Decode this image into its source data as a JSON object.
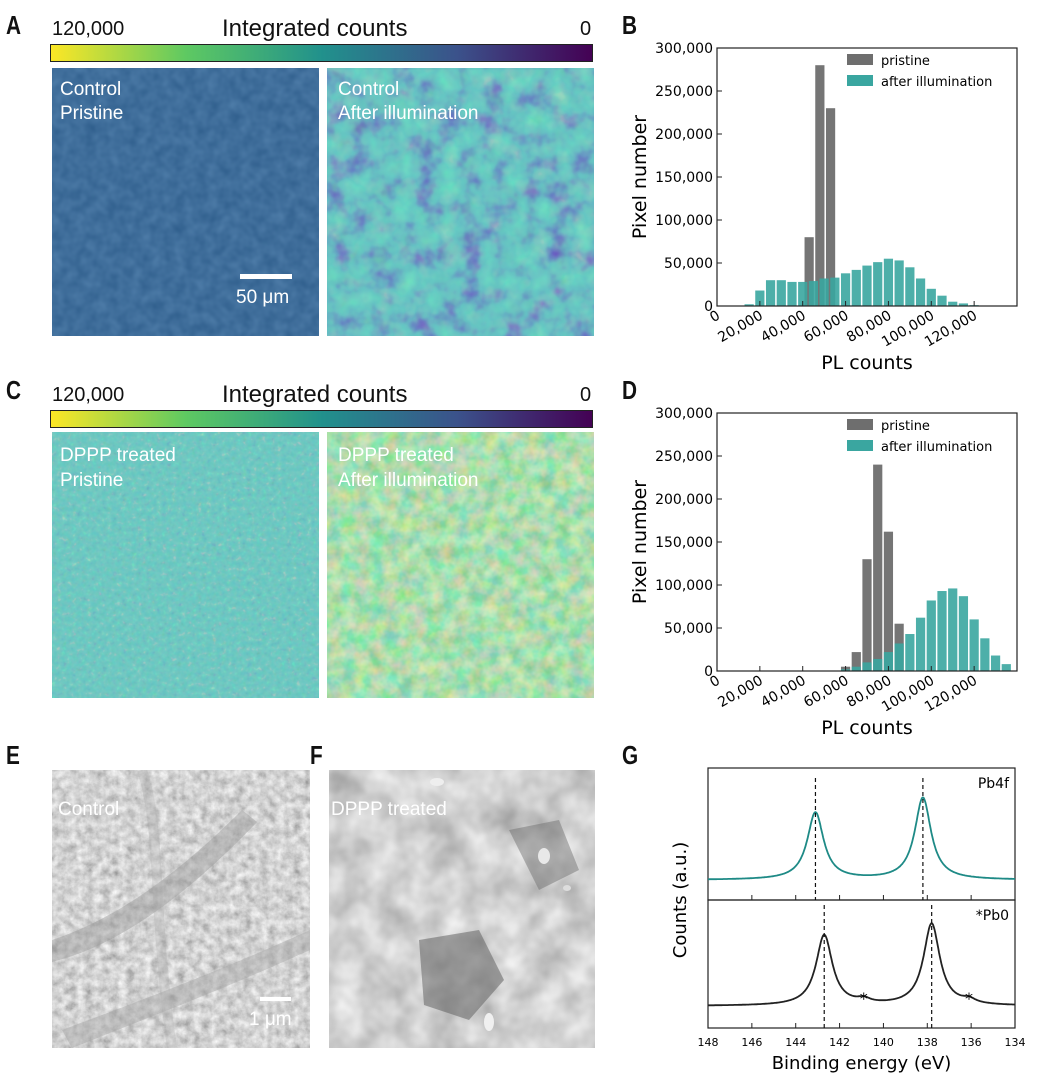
{
  "panels": {
    "A": {
      "letter": "A",
      "colorbar": {
        "title": "Integrated counts",
        "left_value": "120,000",
        "right_value": "0"
      },
      "images": [
        {
          "label_line1": "Control",
          "label_line2": "Pristine"
        },
        {
          "label_line1": "Control",
          "label_line2": "After illumination"
        }
      ],
      "scalebar": "50 μm"
    },
    "B": {
      "letter": "B"
    },
    "C": {
      "letter": "C",
      "colorbar": {
        "title": "Integrated counts",
        "left_value": "120,000",
        "right_value": "0"
      },
      "images": [
        {
          "label_line1": "DPPP treated",
          "label_line2": "Pristine"
        },
        {
          "label_line1": "DPPP treated",
          "label_line2": "After illumination"
        }
      ]
    },
    "D": {
      "letter": "D"
    },
    "E": {
      "letter": "E",
      "label": "Control",
      "scalebar": "1 μm"
    },
    "F": {
      "letter": "F",
      "label": "DPPP treated"
    },
    "G": {
      "letter": "G"
    }
  },
  "colors": {
    "pristine": "#6e6e6e",
    "after": "#3aa6a0",
    "pb4f_line": "#1e8a86",
    "pb0_line": "#222222"
  },
  "chart_data": [
    {
      "id": "B",
      "type": "bar",
      "xlabel": "PL counts",
      "ylabel": "Pixel number",
      "xlim": [
        0,
        140000
      ],
      "ylim": [
        0,
        300000
      ],
      "xticks": [
        "0",
        "20,000",
        "40,000",
        "60,000",
        "80,000",
        "100,000",
        "120,000"
      ],
      "yticks": [
        "0",
        "50,000",
        "100,000",
        "150,000",
        "200,000",
        "250,000",
        "300,000"
      ],
      "legend": "top-right",
      "series": [
        {
          "name": "pristine",
          "x": [
            43000,
            48000,
            53000
          ],
          "values": [
            80000,
            280000,
            230000
          ]
        },
        {
          "name": "after illumination",
          "x": [
            15000,
            20000,
            25000,
            30000,
            35000,
            40000,
            45000,
            50000,
            55000,
            60000,
            65000,
            70000,
            75000,
            80000,
            85000,
            90000,
            95000,
            100000,
            105000,
            110000,
            115000,
            120000
          ],
          "values": [
            2000,
            18000,
            30000,
            30000,
            28000,
            28000,
            29000,
            32000,
            33000,
            38000,
            42000,
            47000,
            51000,
            55000,
            53000,
            45000,
            32000,
            20000,
            12000,
            5000,
            3000,
            1000
          ]
        }
      ]
    },
    {
      "id": "D",
      "type": "bar",
      "xlabel": "PL counts",
      "ylabel": "Pixel number",
      "xlim": [
        0,
        140000
      ],
      "ylim": [
        0,
        300000
      ],
      "xticks": [
        "0",
        "20,000",
        "40,000",
        "60,000",
        "80,000",
        "100,000",
        "120,000"
      ],
      "yticks": [
        "0",
        "50,000",
        "100,000",
        "150,000",
        "200,000",
        "250,000",
        "300,000"
      ],
      "legend": "top-right",
      "series": [
        {
          "name": "pristine",
          "x": [
            60000,
            65000,
            70000,
            75000,
            80000,
            85000
          ],
          "values": [
            5000,
            22000,
            130000,
            240000,
            162000,
            55000
          ]
        },
        {
          "name": "after illumination",
          "x": [
            60000,
            65000,
            70000,
            75000,
            80000,
            85000,
            90000,
            95000,
            100000,
            105000,
            110000,
            115000,
            120000,
            125000,
            130000,
            135000
          ],
          "values": [
            2000,
            5000,
            10000,
            14000,
            22000,
            32000,
            43000,
            62000,
            82000,
            93000,
            96000,
            87000,
            60000,
            38000,
            18000,
            8000
          ]
        }
      ]
    },
    {
      "id": "G",
      "type": "line",
      "xlabel": "Binding energy (eV)",
      "ylabel": "Counts (a.u.)",
      "xlim": [
        148,
        134
      ],
      "xticks": [
        "148",
        "146",
        "144",
        "142",
        "140",
        "138",
        "136",
        "134"
      ],
      "series": [
        {
          "name": "Pb4f",
          "peaks": [
            143.1,
            138.2
          ],
          "dashed_lines": [
            143.1,
            138.2
          ]
        },
        {
          "name": "*Pb0",
          "peaks": [
            142.7,
            137.8
          ],
          "dashed_lines": [
            142.7,
            137.8
          ],
          "markers": [
            {
              "x": 140.9,
              "text": "*"
            },
            {
              "x": 136.1,
              "text": "*"
            }
          ]
        }
      ]
    }
  ]
}
